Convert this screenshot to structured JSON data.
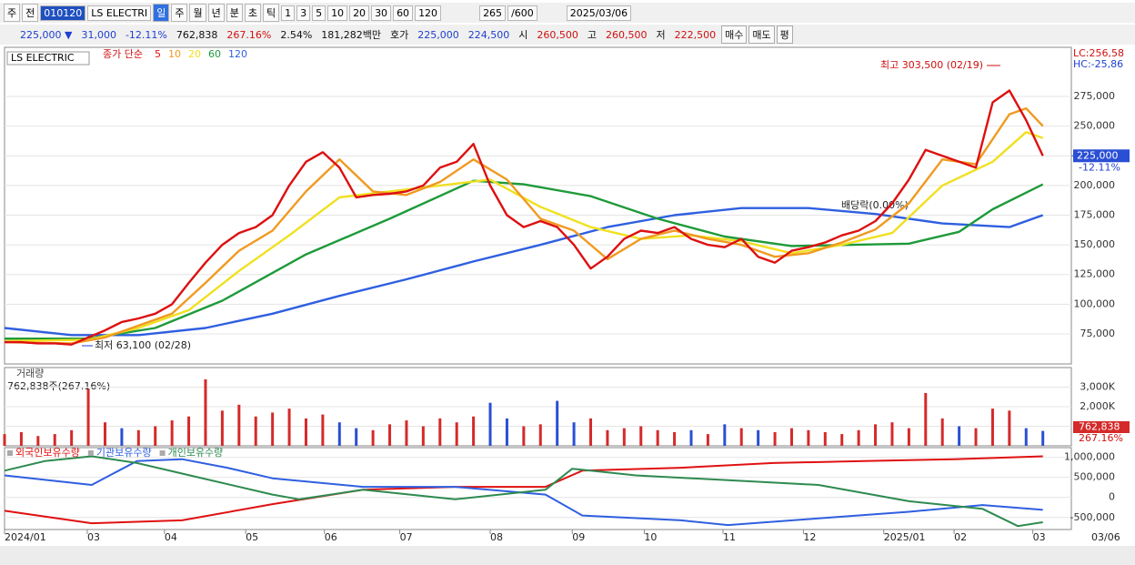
{
  "toolbar": {
    "row1": [
      "주",
      "전",
      "010120",
      "LS ELECTRI",
      "일",
      "주",
      "월",
      "년",
      "분",
      "초",
      "틱",
      "1",
      "3",
      "5",
      "10",
      "20",
      "30",
      "60",
      "120",
      "265",
      "/600",
      "2025/03/06"
    ],
    "row2": [
      "225,000 ▼",
      "31,000",
      "-12.11%",
      "762,838",
      "267.16%",
      "2.54%",
      "181,282백만",
      "호가",
      "225,000",
      "224,500",
      "시",
      "260,500",
      "고",
      "260,500",
      "저",
      "222,500",
      "매수",
      "매도",
      "평"
    ]
  },
  "chart_data": [
    {
      "type": "line",
      "symbol": "LS ELECTRIC",
      "legend_title": "종가 단순",
      "lc": "LC:256,58",
      "hc": "HC:-25,86",
      "last_price": {
        "value": 225000,
        "label": "225,000"
      },
      "last_change": "-12.11%",
      "annotations": {
        "high": "최고 303,500 (02/19)",
        "low": "최저 63,100 (02/28)",
        "dividend": "배당락(0.00%)"
      },
      "xlim": [
        0,
        63.7
      ],
      "ylim": [
        49700,
        316400
      ],
      "grid": true,
      "yticks": [
        {
          "value": 75000,
          "label": "75,000"
        },
        {
          "value": 100000,
          "label": "100,000"
        },
        {
          "value": 125000,
          "label": "125,000"
        },
        {
          "value": 150000,
          "label": "150,000"
        },
        {
          "value": 175000,
          "label": "175,000"
        },
        {
          "value": 200000,
          "label": "200,000"
        },
        {
          "value": 225000,
          "label": "225,000"
        },
        {
          "value": 250000,
          "label": "250,000"
        },
        {
          "value": 275000,
          "label": "275,000"
        }
      ],
      "xticks": [
        {
          "value": 0,
          "label": "2024/01"
        },
        {
          "value": 4.94,
          "label": "03"
        },
        {
          "value": 9.55,
          "label": "04"
        },
        {
          "value": 14.4,
          "label": "05"
        },
        {
          "value": 19.1,
          "label": "06"
        },
        {
          "value": 23.6,
          "label": "07"
        },
        {
          "value": 29.0,
          "label": "08"
        },
        {
          "value": 33.9,
          "label": "09"
        },
        {
          "value": 38.2,
          "label": "10"
        },
        {
          "value": 42.9,
          "label": "11"
        },
        {
          "value": 47.7,
          "label": "12"
        },
        {
          "value": 52.5,
          "label": "2025/01"
        },
        {
          "value": 56.7,
          "label": "02"
        },
        {
          "value": 61.4,
          "label": "03"
        }
      ],
      "current_date": "03/06",
      "series": [
        {
          "name": "120",
          "color": "#2f5fe0",
          "x": [
            0,
            4,
            8,
            12,
            16,
            20,
            24,
            28,
            32,
            36,
            40,
            44,
            48,
            52,
            56,
            60,
            62
          ],
          "values": [
            80000,
            74000,
            74000,
            80000,
            92000,
            107000,
            121000,
            136000,
            150000,
            165000,
            175000,
            181000,
            181000,
            176000,
            168000,
            165000,
            175000
          ]
        },
        {
          "name": "60",
          "color": "#1e9a3a",
          "x": [
            0,
            5,
            9,
            13,
            18,
            23,
            28,
            31,
            35,
            39,
            43,
            47,
            54,
            57,
            59,
            62
          ],
          "values": [
            71000,
            71000,
            80000,
            103000,
            142000,
            172000,
            204000,
            201000,
            191000,
            172000,
            157000,
            149000,
            151000,
            161000,
            180000,
            201000
          ]
        },
        {
          "name": "20",
          "color": "#f0e020",
          "x": [
            0,
            5,
            8,
            11,
            14,
            17,
            20,
            23,
            26,
            29,
            32,
            35,
            38,
            41,
            44,
            47,
            50,
            53,
            56,
            59,
            61,
            62
          ],
          "values": [
            69000,
            70000,
            80000,
            95000,
            128000,
            158000,
            190000,
            195000,
            200000,
            205000,
            182000,
            165000,
            155000,
            158000,
            153000,
            143000,
            150000,
            160000,
            200000,
            220000,
            245000,
            240000
          ]
        },
        {
          "name": "10",
          "color": "#f09a20",
          "x": [
            0,
            2,
            4,
            6,
            8,
            10,
            12,
            14,
            16,
            18,
            20,
            22,
            24,
            26,
            28,
            30,
            32,
            34,
            36,
            38,
            40,
            42,
            44,
            46,
            48,
            50,
            52,
            54,
            56,
            58,
            60,
            61,
            62
          ],
          "values": [
            68000,
            67500,
            67000,
            72000,
            82000,
            92000,
            118000,
            145000,
            162000,
            195000,
            222000,
            195000,
            192000,
            203000,
            222000,
            205000,
            172000,
            162000,
            138000,
            155000,
            162000,
            155000,
            150000,
            140000,
            143000,
            152000,
            163000,
            185000,
            222000,
            218000,
            260000,
            265000,
            250000
          ]
        },
        {
          "name": "5",
          "color": "#dd1010",
          "x": [
            0,
            1,
            2,
            3,
            4,
            5,
            6,
            7,
            8,
            9,
            10,
            11,
            12,
            13,
            14,
            15,
            16,
            17,
            18,
            19,
            20,
            21,
            22,
            23,
            24,
            25,
            26,
            27,
            28,
            29,
            30,
            31,
            32,
            33,
            34,
            35,
            36,
            37,
            38,
            39,
            40,
            41,
            42,
            43,
            44,
            45,
            46,
            47,
            48,
            49,
            50,
            51,
            52,
            53,
            54,
            55,
            56,
            57,
            58,
            59,
            60,
            61,
            62
          ],
          "values": [
            68000,
            68000,
            67000,
            67000,
            66000,
            72000,
            78000,
            85000,
            88000,
            92000,
            100000,
            118000,
            135000,
            150000,
            160000,
            165000,
            175000,
            200000,
            220000,
            228000,
            215000,
            190000,
            192000,
            193000,
            195000,
            200000,
            215000,
            220000,
            235000,
            200000,
            175000,
            165000,
            170000,
            165000,
            150000,
            130000,
            140000,
            155000,
            162000,
            160000,
            165000,
            155000,
            150000,
            148000,
            155000,
            140000,
            135000,
            145000,
            148000,
            152000,
            158000,
            162000,
            170000,
            185000,
            205000,
            230000,
            225000,
            220000,
            215000,
            270000,
            280000,
            255000,
            225000
          ]
        }
      ]
    },
    {
      "type": "bar",
      "title": "거래량",
      "subtitle": "762,838주(267.16%)",
      "current_value": "762,838",
      "current_ratio": "267.16%",
      "color": "#d42a2a",
      "down_color": "#2a4fd4",
      "down": [
        7,
        20,
        21,
        29,
        30,
        33,
        34,
        41,
        43,
        45,
        57,
        61,
        62
      ],
      "ylim": [
        0,
        4000000
      ],
      "yticks": [
        {
          "value": 3000000,
          "label": "3,000K"
        },
        {
          "value": 2000000,
          "label": "2,000K"
        },
        {
          "value": 1000000,
          "label": "1,000K"
        }
      ],
      "values": [
        600000,
        700000,
        500000,
        600000,
        800000,
        2900000,
        1200000,
        900000,
        800000,
        1000000,
        1300000,
        1500000,
        3400000,
        1800000,
        2100000,
        1500000,
        1700000,
        1900000,
        1400000,
        1600000,
        1200000,
        900000,
        800000,
        1100000,
        1300000,
        1000000,
        1400000,
        1200000,
        1500000,
        2200000,
        1400000,
        1000000,
        1100000,
        2300000,
        1200000,
        1400000,
        800000,
        900000,
        1000000,
        800000,
        700000,
        800000,
        600000,
        1100000,
        900000,
        800000,
        700000,
        900000,
        800000,
        700000,
        600000,
        800000,
        1100000,
        1200000,
        900000,
        2700000,
        1400000,
        1000000,
        900000,
        1900000,
        1800000,
        900000,
        762838
      ]
    },
    {
      "type": "line",
      "ylim": [
        -800000,
        1240000
      ],
      "yticks": [
        {
          "value": 1000000,
          "label": "1,000,000"
        },
        {
          "value": 500000,
          "label": "500,000"
        },
        0,
        {
          "value": -500000,
          "label": "-500,000"
        }
      ],
      "series": [
        {
          "name": "외국인보유수량",
          "color": "#e01010",
          "x": [
            0,
            5.2,
            10.6,
            16,
            21.4,
            26.9,
            32.3,
            34.5,
            40.4,
            45.9,
            51.3,
            56.7,
            62
          ],
          "values": [
            -333000,
            -643000,
            -571000,
            -167000,
            190000,
            262000,
            262000,
            667000,
            738000,
            857000,
            905000,
            952000,
            1024000
          ]
        },
        {
          "name": "기관보유수량",
          "color": "#2f5fe0",
          "x": [
            0,
            5.2,
            7.9,
            10.6,
            13.3,
            16,
            21.4,
            26.9,
            32.3,
            34.5,
            40.4,
            43.2,
            48.6,
            54,
            58.4,
            62
          ],
          "values": [
            548000,
            310000,
            905000,
            952000,
            738000,
            476000,
            262000,
            262000,
            71000,
            -452000,
            -571000,
            -690000,
            -524000,
            -357000,
            -190000,
            -310000
          ]
        },
        {
          "name": "개인보유수량",
          "color": "#2e8a50",
          "x": [
            0,
            2.4,
            5.2,
            7.9,
            10.6,
            16,
            17.6,
            21.4,
            26.9,
            32.3,
            33.9,
            37.7,
            43.2,
            48.6,
            54,
            58.4,
            60.5,
            62
          ],
          "values": [
            667000,
            905000,
            1024000,
            857000,
            595000,
            71000,
            -48000,
            190000,
            -48000,
            190000,
            714000,
            548000,
            429000,
            310000,
            -95000,
            -286000,
            -714000,
            -619000
          ]
        }
      ]
    }
  ]
}
